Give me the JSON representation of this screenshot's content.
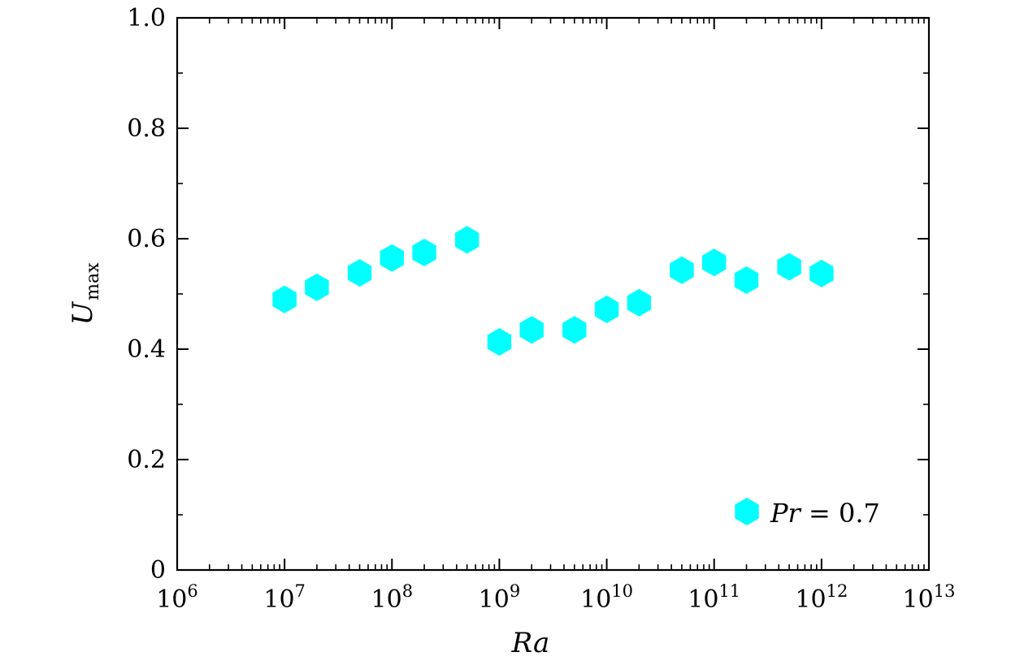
{
  "chart_data": {
    "type": "scatter",
    "title": "",
    "xlabel": "Ra",
    "ylabel": "U",
    "ylabel_subscript": "max",
    "xscale": "log",
    "xlim_exp": [
      6,
      13
    ],
    "ylim": [
      0,
      1.0
    ],
    "x_tick_base": "10",
    "x_tick_exponents": [
      "6",
      "7",
      "8",
      "9",
      "10",
      "11",
      "12",
      "13"
    ],
    "y_ticks": [
      0,
      0.2,
      0.4,
      0.6,
      0.8,
      1.0
    ],
    "y_tick_labels": [
      "0",
      "0.2",
      "0.4",
      "0.6",
      "0.8",
      "1.0"
    ],
    "grid": false,
    "legend_position": "bottom-right",
    "series": [
      {
        "name": "Pr = 0.7",
        "legend_prefix": "Pr",
        "legend_suffix": " = 0.7",
        "color": "#00FFFF",
        "marker": "hexagon",
        "x": [
          10000000.0,
          20000000.0,
          50000000.0,
          100000000.0,
          200000000.0,
          500000000.0,
          1000000000.0,
          2000000000.0,
          5000000000.0,
          10000000000.0,
          20000000000.0,
          50000000000.0,
          100000000000.0,
          200000000000.0,
          500000000000.0,
          1000000000000.0
        ],
        "y": [
          0.49,
          0.512,
          0.538,
          0.565,
          0.575,
          0.598,
          0.413,
          0.435,
          0.435,
          0.472,
          0.484,
          0.543,
          0.557,
          0.525,
          0.549,
          0.537
        ]
      }
    ]
  }
}
